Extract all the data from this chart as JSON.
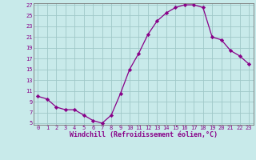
{
  "x": [
    0,
    1,
    2,
    3,
    4,
    5,
    6,
    7,
    8,
    9,
    10,
    11,
    12,
    13,
    14,
    15,
    16,
    17,
    18,
    19,
    20,
    21,
    22,
    23
  ],
  "y": [
    10.0,
    9.5,
    8.0,
    7.5,
    7.5,
    6.5,
    5.5,
    5.0,
    6.5,
    10.5,
    15.0,
    18.0,
    21.5,
    24.0,
    25.5,
    26.5,
    27.0,
    27.0,
    26.5,
    21.0,
    20.5,
    18.5,
    17.5,
    16.0
  ],
  "line_color": "#880088",
  "marker": "D",
  "marker_size": 2.2,
  "bg_color": "#c8eaea",
  "grid_color": "#a0c8c8",
  "xlabel": "Windchill (Refroidissement éolien,°C)",
  "xlabel_color": "#880088",
  "tick_color": "#880088",
  "ylim": [
    5,
    27
  ],
  "xlim": [
    -0.5,
    23.5
  ],
  "yticks": [
    5,
    7,
    9,
    11,
    13,
    15,
    17,
    19,
    21,
    23,
    25,
    27
  ],
  "xticks": [
    0,
    1,
    2,
    3,
    4,
    5,
    6,
    7,
    8,
    9,
    10,
    11,
    12,
    13,
    14,
    15,
    16,
    17,
    18,
    19,
    20,
    21,
    22,
    23
  ],
  "tick_fontsize": 5.0,
  "xlabel_fontsize": 6.0
}
